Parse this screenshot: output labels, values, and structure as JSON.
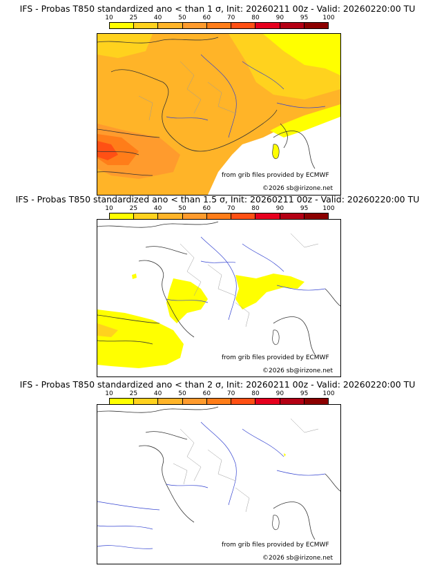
{
  "colorbar": {
    "ticks": [
      "10",
      "25",
      "40",
      "50",
      "60",
      "70",
      "80",
      "90",
      "95",
      "100"
    ],
    "colors": [
      "#ffff00",
      "#ffd21e",
      "#ffb428",
      "#ff9b2d",
      "#ff7d19",
      "#ff5014",
      "#e6001e",
      "#b40014",
      "#8c0000",
      "#500000"
    ]
  },
  "credit": {
    "source": "from grib files provided by ECMWF",
    "copyright": "©2026 sb@irizone.net"
  },
  "panels": [
    {
      "title": "IFS - Probas T850  standardized ano < than 1 σ, Init: 20260211 00z - Valid: 20260220:00 TU",
      "coverage": "widespread"
    },
    {
      "title": "IFS - Probas T850  standardized ano < than 1.5 σ, Init: 20260211 00z - Valid: 20260220:00 TU",
      "coverage": "partial"
    },
    {
      "title": "IFS - Probas T850  standardized ano < than 2 σ, Init: 20260211 00z - Valid: 20260220:00 TU",
      "coverage": "none"
    }
  ]
}
